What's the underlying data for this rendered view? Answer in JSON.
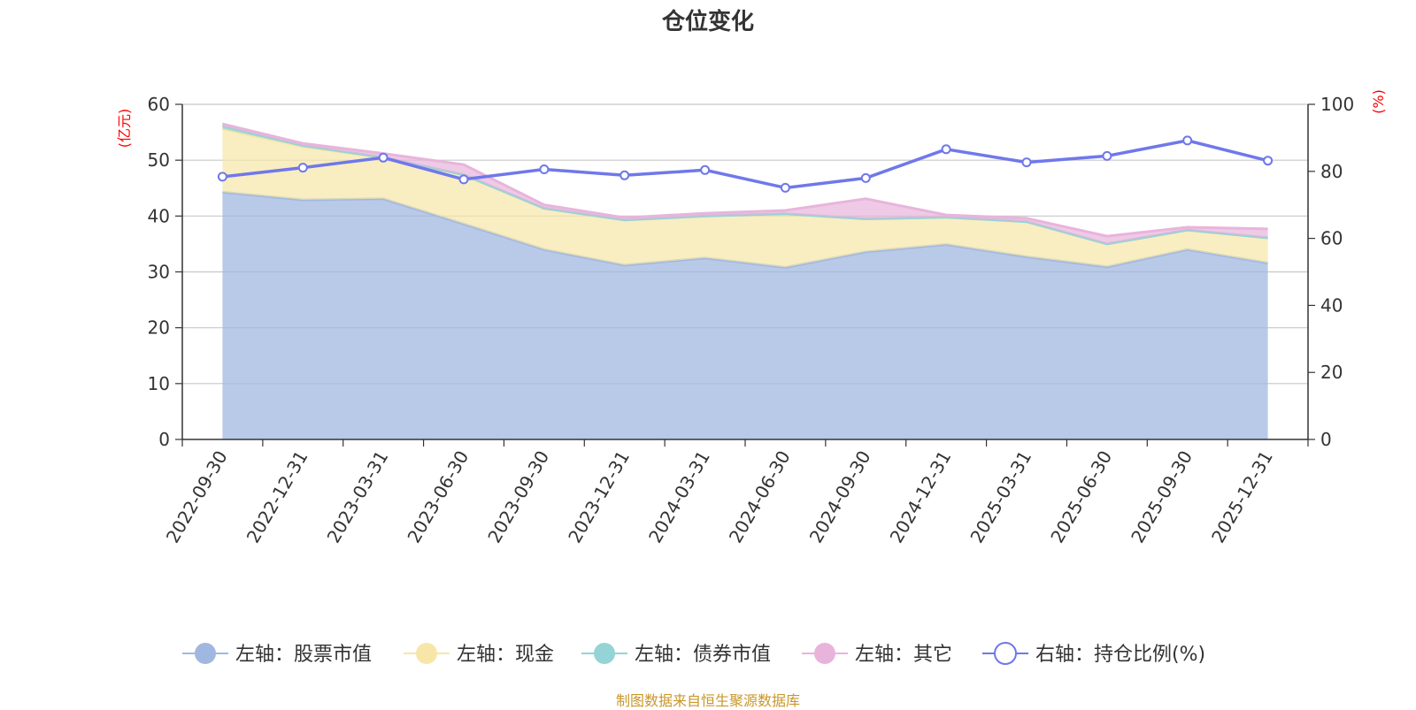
{
  "chart_data": {
    "type": "area",
    "title": "仓位变化",
    "categories": [
      "2022-09-30",
      "2022-12-31",
      "2023-03-31",
      "2023-06-30",
      "2023-09-30",
      "2023-12-31",
      "2024-03-31",
      "2024-06-30",
      "2024-09-30",
      "2024-12-31",
      "2025-03-31",
      "2025-06-30",
      "2025-09-30",
      "2025-12-31"
    ],
    "y_left": {
      "name": "(亿元)",
      "ylim": [
        0,
        60
      ],
      "ticks": [
        0,
        10,
        20,
        30,
        40,
        50,
        60
      ]
    },
    "y_right": {
      "name": "(%)",
      "ylim": [
        0,
        100
      ],
      "ticks": [
        0,
        20,
        40,
        60,
        80,
        100
      ]
    },
    "stacked": true,
    "series": [
      {
        "name": "左轴：股票市值",
        "axis": "left",
        "color": "#a0b8e0",
        "values": [
          44.3,
          42.9,
          43.1,
          38.6,
          34.0,
          31.2,
          32.5,
          30.8,
          33.6,
          34.9,
          32.7,
          30.9,
          34.0,
          31.6
        ]
      },
      {
        "name": "左轴：现金",
        "axis": "left",
        "color": "#f7e6a8",
        "values": [
          11.3,
          9.5,
          7.3,
          8.8,
          7.4,
          8.1,
          7.5,
          9.6,
          5.9,
          4.9,
          6.3,
          4.1,
          3.5,
          4.5
        ]
      },
      {
        "name": "左轴：债券市值",
        "axis": "left",
        "color": "#94d4d6",
        "values": [
          0.5,
          0.2,
          0.1,
          0,
          0,
          0,
          0,
          0,
          0,
          0,
          0,
          0,
          0,
          0
        ]
      },
      {
        "name": "左轴：其它",
        "axis": "left",
        "color": "#e8b4dc",
        "values": [
          0.4,
          0.4,
          0.7,
          1.8,
          0.6,
          0.4,
          0.5,
          0.6,
          3.6,
          0.4,
          0.6,
          1.4,
          0.5,
          1.6
        ]
      },
      {
        "name": "右轴：持仓比例(%)",
        "axis": "right",
        "color": "#6f78ea",
        "values": [
          78.4,
          81.1,
          84.1,
          77.6,
          80.6,
          78.8,
          80.4,
          75.1,
          78.0,
          86.6,
          82.7,
          84.6,
          89.2,
          83.2
        ]
      }
    ],
    "legend_position": "bottom",
    "grid": true
  },
  "footer": {
    "source": "制图数据来自恒生聚源数据库"
  }
}
